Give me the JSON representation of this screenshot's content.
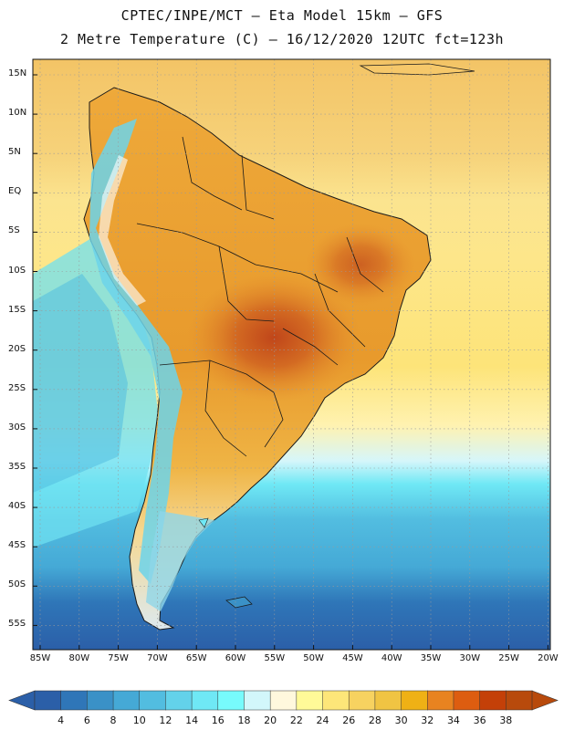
{
  "titles": {
    "line1": "CPTEC/INPE/MCT –  Eta Model 15km – GFS",
    "line2": "2 Metre Temperature (C) – 16/12/2020 12UTC fct=123h"
  },
  "lat_axis": [
    "15N",
    "10N",
    "5N",
    "EQ",
    "5S",
    "10S",
    "15S",
    "20S",
    "25S",
    "30S",
    "35S",
    "40S",
    "45S",
    "50S",
    "55S"
  ],
  "lon_axis": [
    "85W",
    "80W",
    "75W",
    "70W",
    "65W",
    "60W",
    "55W",
    "50W",
    "45W",
    "40W",
    "35W",
    "30W",
    "25W",
    "20W"
  ],
  "colorbar": {
    "labels": [
      "4",
      "6",
      "8",
      "10",
      "12",
      "14",
      "16",
      "18",
      "20",
      "22",
      "24",
      "26",
      "28",
      "30",
      "32",
      "34",
      "36",
      "38"
    ],
    "colors": [
      "#2b5fa8",
      "#2f76b8",
      "#3a91c7",
      "#45a9d6",
      "#52bde0",
      "#63d2ea",
      "#6fe8f5",
      "#77fbfc",
      "#d2f7fb",
      "#fff8dd",
      "#fffa98",
      "#fde679",
      "#f7d260",
      "#f0c443",
      "#efb115",
      "#e88320",
      "#dd5d10",
      "#c44008",
      "#b84a0c"
    ]
  }
}
